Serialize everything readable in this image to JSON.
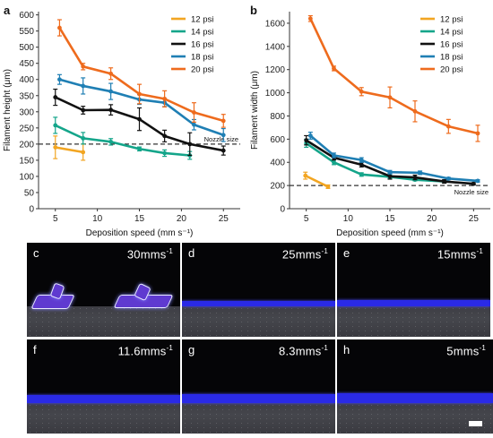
{
  "chart_data": [
    {
      "panel": "a",
      "type": "line",
      "xlabel": "Deposition speed (mm s⁻¹)",
      "ylabel": "Filament height (μm)",
      "xlim": [
        3,
        27
      ],
      "ylim": [
        0,
        610
      ],
      "xticks": [
        5,
        10,
        15,
        20,
        25
      ],
      "yticks": [
        0,
        50,
        100,
        150,
        200,
        250,
        300,
        350,
        400,
        450,
        500,
        550,
        600
      ],
      "reference_line": {
        "y": 200,
        "label": "Nozzle size"
      },
      "legend": {
        "position": "top-right"
      },
      "series": [
        {
          "name": "12 psi",
          "color": "#f2a521",
          "x": [
            5,
            8.3
          ],
          "y": [
            190,
            175
          ],
          "err": [
            35,
            25
          ]
        },
        {
          "name": "14 psi",
          "color": "#14a58a",
          "x": [
            5,
            8.3,
            11.6,
            15,
            18,
            21
          ],
          "y": [
            258,
            218,
            207,
            185,
            172,
            165
          ],
          "err": [
            25,
            18,
            10,
            6,
            10,
            12
          ]
        },
        {
          "name": "16 psi",
          "color": "#111111",
          "x": [
            5,
            8.3,
            11.6,
            15,
            18,
            21,
            25
          ],
          "y": [
            345,
            305,
            306,
            277,
            225,
            200,
            180
          ],
          "err": [
            25,
            12,
            16,
            35,
            18,
            35,
            14
          ]
        },
        {
          "name": "18 psi",
          "color": "#1f7fb4",
          "x": [
            5.5,
            8.3,
            11.6,
            15,
            18,
            21.5,
            25
          ],
          "y": [
            400,
            380,
            363,
            338,
            328,
            260,
            228
          ],
          "err": [
            15,
            25,
            25,
            15,
            12,
            16,
            20
          ]
        },
        {
          "name": "20 psi",
          "color": "#ee6b1d",
          "x": [
            5.5,
            8.3,
            11.6,
            15,
            18,
            21.5,
            25
          ],
          "y": [
            560,
            440,
            418,
            355,
            340,
            298,
            272
          ],
          "err": [
            25,
            10,
            18,
            30,
            25,
            30,
            20
          ]
        }
      ]
    },
    {
      "panel": "b",
      "type": "line",
      "xlabel": "Deposition speed (mm s⁻¹)",
      "ylabel": "Filament width (μm)",
      "xlim": [
        3,
        27
      ],
      "ylim": [
        0,
        1700
      ],
      "xticks": [
        5,
        10,
        15,
        20,
        25
      ],
      "yticks": [
        0,
        200,
        400,
        600,
        800,
        1000,
        1200,
        1400,
        1600
      ],
      "reference_line": {
        "y": 200,
        "label": "Nozzle size"
      },
      "legend": {
        "position": "top-right"
      },
      "series": [
        {
          "name": "12 psi",
          "color": "#f2a521",
          "x": [
            4.9,
            7.6
          ],
          "y": [
            285,
            190
          ],
          "err": [
            30,
            15
          ]
        },
        {
          "name": "14 psi",
          "color": "#14a58a",
          "x": [
            5,
            8.3,
            11.6,
            15,
            18,
            21.5
          ],
          "y": [
            565,
            400,
            295,
            275,
            250,
            235
          ],
          "err": [
            35,
            20,
            15,
            15,
            10,
            10
          ]
        },
        {
          "name": "16 psi",
          "color": "#111111",
          "x": [
            5,
            8.3,
            11.6,
            15,
            18,
            21.5,
            25
          ],
          "y": [
            590,
            440,
            380,
            280,
            270,
            235,
            215
          ],
          "err": [
            40,
            20,
            20,
            25,
            20,
            15,
            10
          ]
        },
        {
          "name": "18 psi",
          "color": "#1f7fb4",
          "x": [
            5.5,
            8.3,
            11.6,
            15,
            18.6,
            22,
            25.5
          ],
          "y": [
            630,
            460,
            420,
            315,
            310,
            260,
            240
          ],
          "err": [
            30,
            20,
            20,
            15,
            15,
            10,
            10
          ]
        },
        {
          "name": "20 psi",
          "color": "#ee6b1d",
          "x": [
            5.5,
            8.3,
            11.6,
            15,
            18,
            22,
            25.5
          ],
          "y": [
            1640,
            1210,
            1010,
            960,
            840,
            710,
            650
          ],
          "err": [
            25,
            20,
            35,
            90,
            90,
            60,
            70
          ]
        }
      ]
    }
  ],
  "photos": [
    {
      "letter": "c",
      "speed_value": "30mms",
      "speed_exp": "-1"
    },
    {
      "letter": "d",
      "speed_value": "25mms",
      "speed_exp": "-1"
    },
    {
      "letter": "e",
      "speed_value": "15mms",
      "speed_exp": "-1"
    },
    {
      "letter": "f",
      "speed_value": "11.6mms",
      "speed_exp": "-1"
    },
    {
      "letter": "g",
      "speed_value": "8.3mms",
      "speed_exp": "-1"
    },
    {
      "letter": "h",
      "speed_value": "5mms",
      "speed_exp": "-1"
    }
  ]
}
